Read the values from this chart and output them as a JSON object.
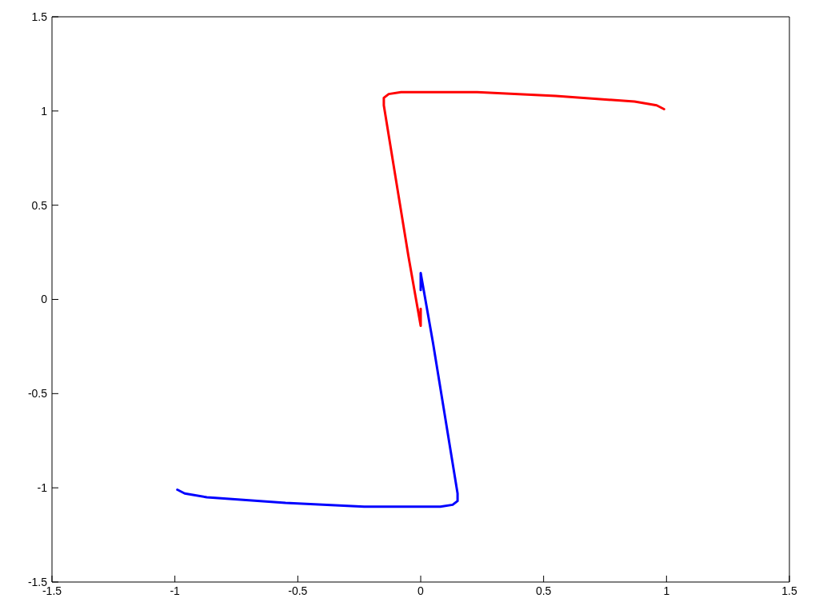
{
  "chart_data": {
    "type": "line",
    "xlim": [
      -1.5,
      1.5
    ],
    "ylim": [
      -1.5,
      1.5
    ],
    "xticks": [
      -1.5,
      -1,
      -0.5,
      0,
      0.5,
      1,
      1.5
    ],
    "yticks": [
      -1.5,
      -1,
      -0.5,
      0,
      0.5,
      1,
      1.5
    ],
    "grid": false,
    "legend": false,
    "marker": "none",
    "line_style": "solid",
    "series": [
      {
        "color": "#ff0000",
        "x": [
          0,
          0,
          -0.05,
          -0.15,
          -0.15,
          -0.13,
          -0.08,
          0,
          0.23,
          0.55,
          0.87,
          0.96,
          0.99
        ],
        "values": [
          -0.05,
          -0.14,
          0.23,
          1.03,
          1.07,
          1.09,
          1.1,
          1.1,
          1.1,
          1.08,
          1.05,
          1.03,
          1.01
        ]
      },
      {
        "color": "#0000ff",
        "x": [
          0,
          0,
          0.05,
          0.15,
          0.15,
          0.13,
          0.08,
          0,
          -0.23,
          -0.55,
          -0.87,
          -0.96,
          -0.99
        ],
        "values": [
          0.05,
          0.14,
          -0.23,
          -1.03,
          -1.07,
          -1.09,
          -1.1,
          -1.1,
          -1.1,
          -1.08,
          -1.05,
          -1.03,
          -1.01
        ]
      }
    ]
  }
}
